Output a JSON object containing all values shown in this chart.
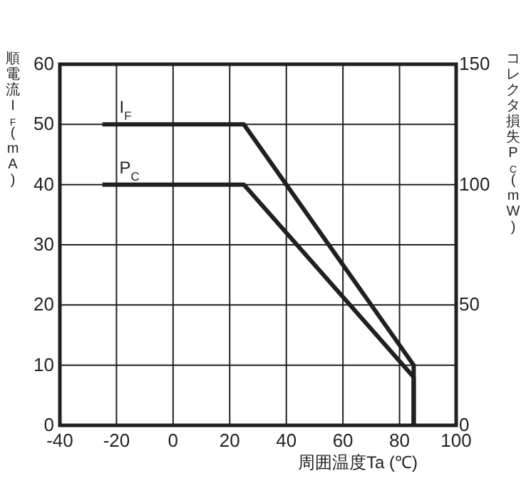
{
  "chart_data": {
    "type": "line",
    "xlabel": "周囲温度Ta (℃)",
    "ylabel": "順電流I$_{F}$(mA)",
    "y2label": "コレクタ損失P$_{C}$(mW)",
    "xlim": [
      -40,
      100
    ],
    "xticks": [
      -40,
      -20,
      0,
      20,
      40,
      60,
      80,
      100
    ],
    "ylim": [
      0,
      60
    ],
    "yticks": [
      0,
      10,
      20,
      30,
      40,
      50,
      60
    ],
    "y2lim": [
      0,
      150
    ],
    "y2ticks": [
      0,
      50,
      100,
      150
    ],
    "grid": true,
    "marker": "none",
    "line_style": "solid",
    "series": [
      {
        "name": "I$_{F}$",
        "color": "#231f20",
        "x": [
          -25,
          25,
          85,
          85
        ],
        "values": [
          50,
          50,
          10,
          0
        ]
      },
      {
        "name": "P$_{C}$",
        "color": "#231f20",
        "axis": "y2",
        "x": [
          -25,
          25,
          85,
          85
        ],
        "values": [
          100,
          100,
          20,
          0
        ]
      }
    ]
  }
}
